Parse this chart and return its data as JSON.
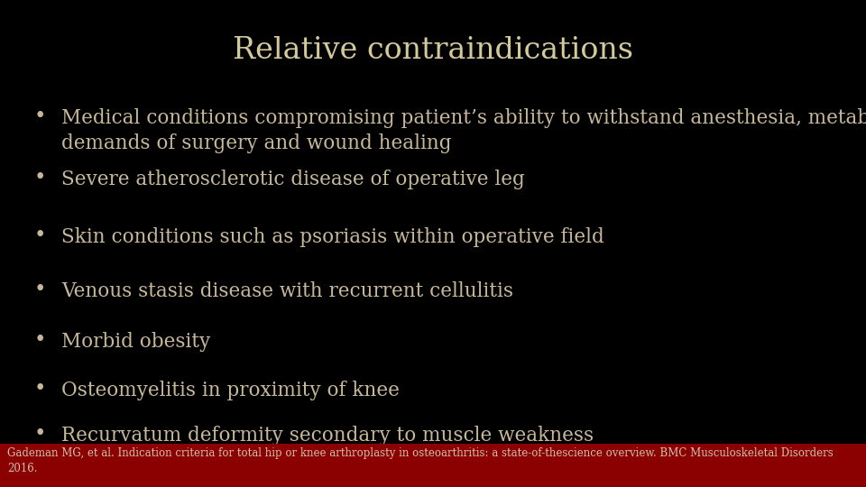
{
  "title": "Relative contraindications",
  "title_color": "#d4c99a",
  "background_color": "#000000",
  "footer_bg_color": "#8b0000",
  "footer_text_color": "#d0c0b0",
  "bullet_color": "#c8b89a",
  "text_color": "#c8b89a",
  "title_fontsize": 24,
  "bullet_fontsize": 15.5,
  "footer_fontsize": 8.5,
  "bullets": [
    "Medical conditions compromising patient’s ability to withstand anesthesia, metabolic\ndemands of surgery and wound healing",
    "Severe atherosclerotic disease of operative leg",
    "Skin conditions such as psoriasis within operative field",
    "Venous stasis disease with recurrent cellulitis",
    "Morbid obesity",
    "Osteomyelitis in proximity of knee",
    "Recurvatum deformity secondary to muscle weakness"
  ],
  "footer_text": "Gademan MG, et al. Indication criteria for total hip or knee arthroplasty in osteoarthritis: a state-of-thescience overview. BMC Musculoskeletal Disorders\n2016."
}
